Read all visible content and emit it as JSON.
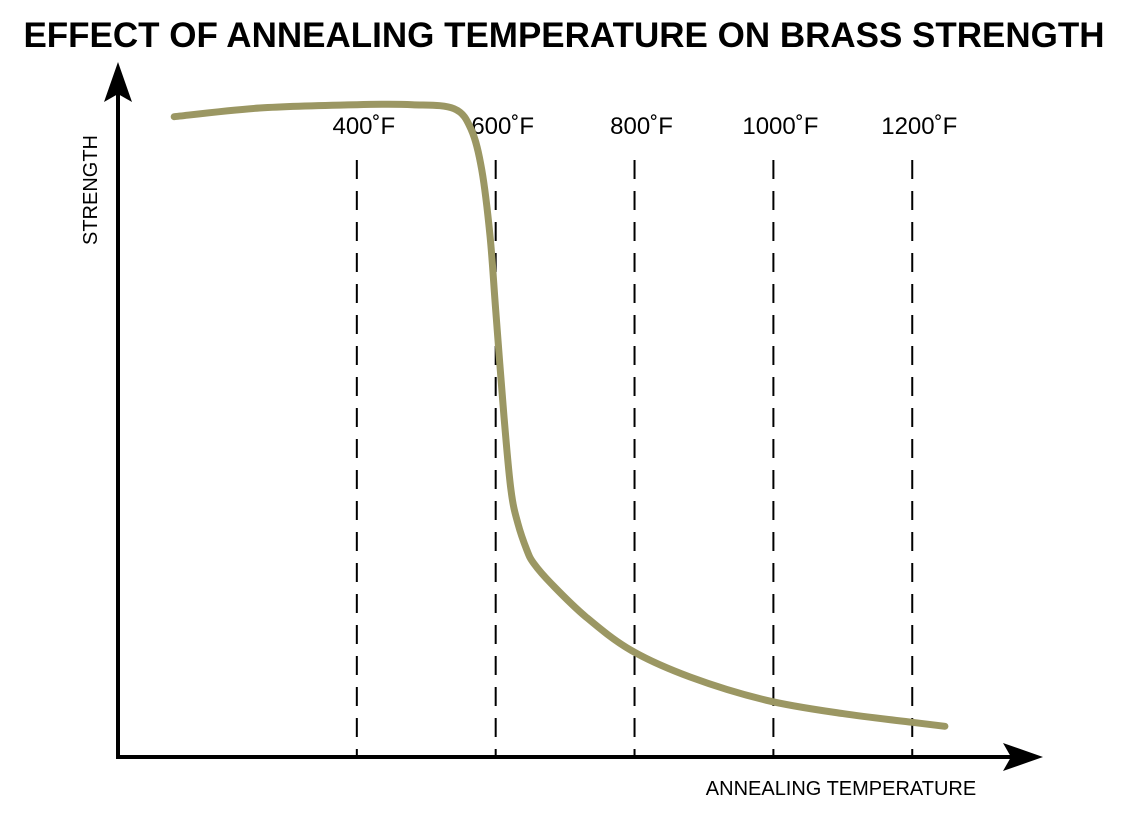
{
  "chart_data": {
    "type": "line",
    "title": "EFFECT OF ANNEALING TEMPERATURE ON BRASS STRENGTH",
    "xlabel": "ANNEALING TEMPERATURE",
    "ylabel": "STRENGTH",
    "x_unit": "°F",
    "xlim": [
      56,
      1348
    ],
    "ylim": [
      0,
      100
    ],
    "grid": "vertical-dashed",
    "ticks": [
      {
        "value": 400,
        "label": "400˚F"
      },
      {
        "value": 600,
        "label": "600˚F"
      },
      {
        "value": 800,
        "label": "800˚F"
      },
      {
        "value": 1000,
        "label": "1000˚F"
      },
      {
        "value": 1200,
        "label": "1200˚F"
      }
    ],
    "series": [
      {
        "name": "Strength",
        "color": "#9b9763",
        "x": [
          137,
          260,
          400,
          480,
          540,
          565,
          580,
          592,
          600,
          612,
          622,
          632,
          645,
          655,
          680,
          730,
          795,
          880,
          990,
          1100,
          1200,
          1247
        ],
        "y": [
          96,
          97.3,
          97.8,
          97.8,
          97.2,
          94,
          88,
          78,
          67,
          51,
          40,
          35,
          31,
          29,
          26,
          21,
          16,
          12,
          8.5,
          6.5,
          5.2,
          4.6
        ]
      }
    ]
  }
}
